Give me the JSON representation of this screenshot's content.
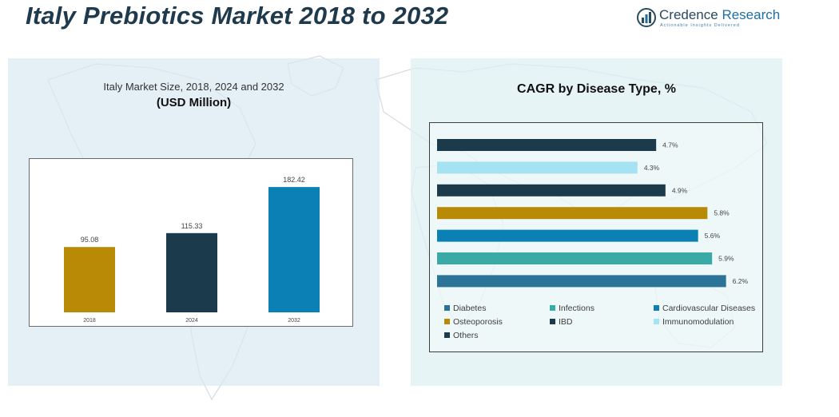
{
  "page": {
    "title": "Italy Prebiotics Market 2018 to 2032"
  },
  "logo": {
    "name_part1": "Credence",
    "name_part2": " Research",
    "tagline": "Actionable Insights Delivered"
  },
  "colors": {
    "title": "#1e3a4c",
    "gold": "#b88a05",
    "navy": "#1b3a4b",
    "blue": "#0a80b4",
    "teal": "#3aaaa6",
    "steel": "#2b7397",
    "light_blue": "#a5e3f3"
  },
  "chart_data": [
    {
      "type": "bar",
      "title": "Italy Market Size, 2018, 2024 and 2032",
      "subtitle": "(USD Million)",
      "categories": [
        "2018",
        "2024",
        "2032"
      ],
      "values": [
        95.08,
        115.33,
        182.42
      ],
      "value_labels": [
        "95.08",
        "115.33",
        "182.42"
      ],
      "bar_colors": [
        "#b88a05",
        "#1b3a4b",
        "#0a80b4"
      ],
      "ylim": [
        0,
        200
      ],
      "grid": false,
      "legend": "none"
    },
    {
      "type": "bar",
      "orientation": "horizontal",
      "title": "CAGR by Disease Type, %",
      "categories": [
        "Others",
        "Immunomodulation",
        "IBD",
        "Osteoporosis",
        "Cardiovascular Diseases",
        "Infections",
        "Diabetes"
      ],
      "values": [
        4.7,
        4.3,
        4.9,
        5.8,
        5.6,
        5.9,
        6.2
      ],
      "value_labels": [
        "4.7%",
        "4.3%",
        "4.9%",
        "5.8%",
        "5.6%",
        "5.9%",
        "6.2%"
      ],
      "bar_colors": [
        "#1b3a4b",
        "#a5e3f3",
        "#1b3a4b",
        "#b88a05",
        "#0a80b4",
        "#3aaaa6",
        "#2b7397"
      ],
      "xlim": [
        0,
        6.6
      ],
      "grid": false,
      "legend": "bottom",
      "legend_entries": [
        {
          "label": "Diabetes",
          "color": "#2b7397"
        },
        {
          "label": "Infections",
          "color": "#3aaaa6"
        },
        {
          "label": "Cardiovascular Diseases",
          "color": "#0a80b4"
        },
        {
          "label": "Osteoporosis",
          "color": "#b88a05"
        },
        {
          "label": "IBD",
          "color": "#1b3a4b"
        },
        {
          "label": "Immunomodulation",
          "color": "#a5e3f3"
        },
        {
          "label": "Others",
          "color": "#1b3a4b"
        }
      ]
    }
  ]
}
